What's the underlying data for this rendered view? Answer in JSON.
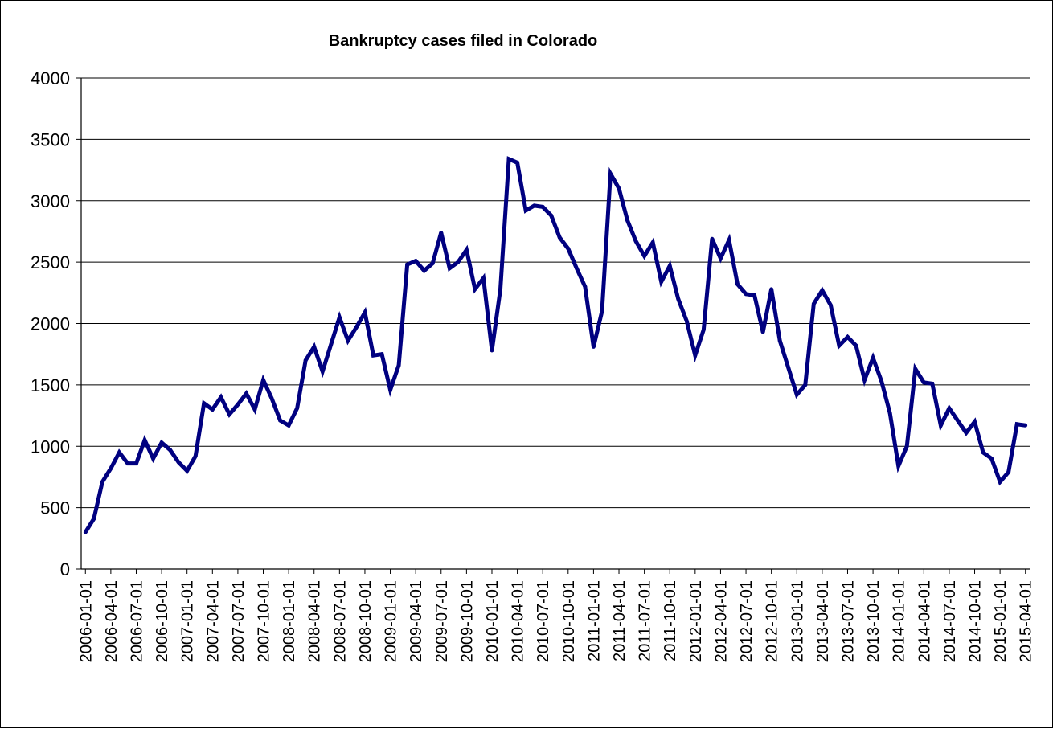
{
  "chart_data": {
    "type": "line",
    "title": "Bankruptcy cases filed in Colorado",
    "xlabel": "",
    "ylabel": "",
    "ylim": [
      0,
      4000
    ],
    "y_ticks": [
      0,
      500,
      1000,
      1500,
      2000,
      2500,
      3000,
      3500,
      4000
    ],
    "x_tick_labels": [
      "2006-01-01",
      "2006-04-01",
      "2006-07-01",
      "2006-10-01",
      "2007-01-01",
      "2007-04-01",
      "2007-07-01",
      "2007-10-01",
      "2008-01-01",
      "2008-04-01",
      "2008-07-01",
      "2008-10-01",
      "2009-01-01",
      "2009-04-01",
      "2009-07-01",
      "2009-10-01",
      "2010-01-01",
      "2010-04-01",
      "2010-07-01",
      "2010-10-01",
      "2011-01-01",
      "2011-04-01",
      "2011-07-01",
      "2011-10-01",
      "2012-01-01",
      "2012-04-01",
      "2012-07-01",
      "2012-10-01",
      "2013-01-01",
      "2013-04-01",
      "2013-07-01",
      "2013-10-01",
      "2014-01-01",
      "2014-04-01",
      "2014-07-01",
      "2014-10-01",
      "2015-01-01",
      "2015-04-01"
    ],
    "grid": true,
    "legend": "none",
    "series": [
      {
        "color": "#000080",
        "x_start": "2006-01",
        "frequency": "monthly",
        "values": [
          300,
          410,
          710,
          820,
          950,
          860,
          860,
          1050,
          900,
          1030,
          970,
          870,
          800,
          920,
          1350,
          1300,
          1400,
          1260,
          1340,
          1430,
          1300,
          1540,
          1390,
          1210,
          1170,
          1310,
          1700,
          1810,
          1610,
          1830,
          2050,
          1860,
          1970,
          2090,
          1740,
          1750,
          1460,
          1660,
          2480,
          2510,
          2430,
          2490,
          2740,
          2450,
          2500,
          2600,
          2280,
          2370,
          1780,
          2280,
          3340,
          3310,
          2920,
          2960,
          2950,
          2880,
          2700,
          2610,
          2450,
          2300,
          1810,
          2100,
          3220,
          3100,
          2840,
          2670,
          2550,
          2660,
          2340,
          2470,
          2200,
          2020,
          1740,
          1950,
          2690,
          2530,
          2680,
          2320,
          2240,
          2230,
          1930,
          2280,
          1860,
          1640,
          1420,
          1500,
          2160,
          2270,
          2150,
          1820,
          1890,
          1820,
          1540,
          1720,
          1530,
          1270,
          840,
          1000,
          1630,
          1520,
          1510,
          1170,
          1310,
          1210,
          1110,
          1200,
          950,
          900,
          710,
          790,
          1180,
          1170
        ]
      }
    ]
  }
}
